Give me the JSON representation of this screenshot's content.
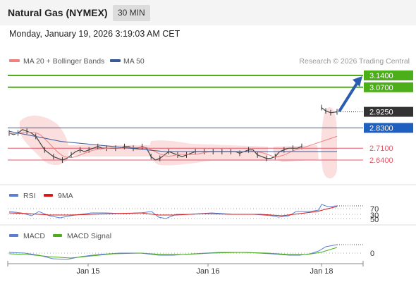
{
  "header": {
    "instrument": "Natural Gas (NYMEX)",
    "timeframe": "30 MIN",
    "datetime": "Monday, January 19, 2026 3:19:03 AM CET"
  },
  "legend": {
    "ma20": "MA 20 + Bollinger Bands",
    "ma50": "MA 50",
    "copyright": "Research © 2026 Trading Central",
    "rsi": "RSI",
    "rsi_ma": "9MA",
    "macd": "MACD",
    "macd_signal": "MACD Signal"
  },
  "colors": {
    "ma20": "#f08080",
    "ma50": "#3b5998",
    "band_fill": "#fbd9d9",
    "resistance": "#4caf1a",
    "pivot": "#1f5fbf",
    "support": "#e05a6a",
    "last_price": "#333333",
    "rsi": "#5c7fd6",
    "rsi_ma": "#d61a1a",
    "macd": "#5c7fd6",
    "macd_signal": "#4caf1a"
  },
  "chart_data": {
    "type": "line",
    "x_labels": [
      "Jan 15",
      "Jan 16",
      "Jan 18"
    ],
    "price_levels": [
      {
        "value": 3.14,
        "label": "3.1400",
        "kind": "resistance"
      },
      {
        "value": 3.07,
        "label": "3.0700",
        "kind": "resistance"
      },
      {
        "value": 2.925,
        "label": "2.9250",
        "kind": "last"
      },
      {
        "value": 2.83,
        "label": "2.8300",
        "kind": "pivot"
      },
      {
        "value": 2.71,
        "label": "2.7100",
        "kind": "support"
      },
      {
        "value": 2.64,
        "label": "2.6400",
        "kind": "support"
      }
    ],
    "price_range": [
      2.52,
      3.2
    ],
    "price_series": [
      2.8,
      2.79,
      2.8,
      2.82,
      2.81,
      2.8,
      2.78,
      2.74,
      2.7,
      2.68,
      2.66,
      2.65,
      2.64,
      2.65,
      2.67,
      2.69,
      2.7,
      2.69,
      2.7,
      2.71,
      2.72,
      2.71,
      2.71,
      2.71,
      2.71,
      2.71,
      2.72,
      2.72,
      2.71,
      2.71,
      2.72,
      2.71,
      2.66,
      2.64,
      2.65,
      2.67,
      2.69,
      2.68,
      2.67,
      2.66,
      2.67,
      2.68,
      2.69,
      2.69,
      2.69,
      2.69,
      2.69,
      2.69,
      2.69,
      2.69,
      2.69,
      2.69,
      2.68,
      2.69,
      2.7,
      2.7,
      2.67,
      2.66,
      2.65,
      2.65,
      2.66,
      2.69,
      2.7,
      2.71,
      2.71,
      2.71,
      2.72
    ],
    "price_gap_series": [
      2.95,
      2.93,
      2.92,
      2.925
    ],
    "ma50_series": [
      2.81,
      2.79,
      2.77,
      2.75,
      2.74,
      2.73,
      2.72,
      2.71,
      2.7,
      2.69,
      2.69,
      2.69,
      2.69,
      2.69,
      2.69,
      2.69,
      2.69,
      2.69,
      2.69,
      2.69
    ],
    "forecast": {
      "from": 2.925,
      "to": 3.14
    },
    "rsi": {
      "levels": [
        "70",
        "30",
        "50"
      ],
      "range": [
        0,
        100
      ]
    },
    "macd": {
      "levels": [
        "0"
      ]
    }
  }
}
